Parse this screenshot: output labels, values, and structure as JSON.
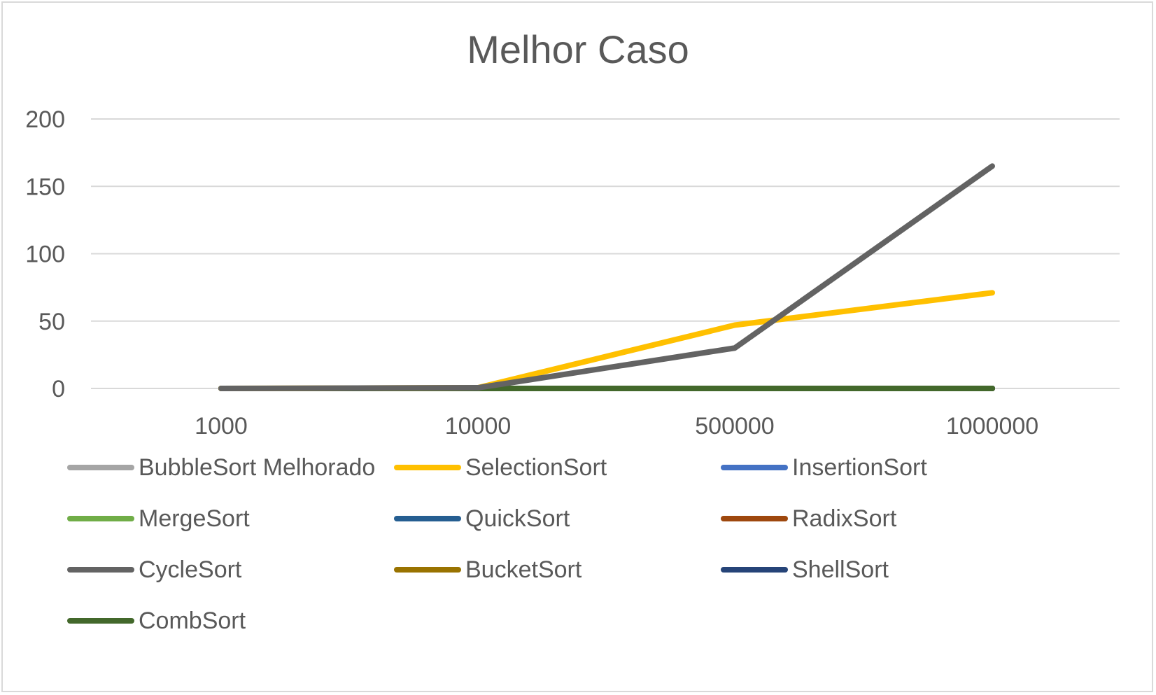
{
  "chart_data": {
    "type": "line",
    "title": "Melhor Caso",
    "xlabel": "",
    "ylabel": "",
    "categories": [
      "1000",
      "10000",
      "500000",
      "1000000"
    ],
    "ylim": [
      0,
      200
    ],
    "yticks": [
      0,
      50,
      100,
      150,
      200
    ],
    "grid": true,
    "legend_position": "bottom",
    "series": [
      {
        "name": "BubbleSort Melhorado",
        "color": "#a5a5a5",
        "values": [
          0,
          0,
          0,
          0
        ]
      },
      {
        "name": "SelectionSort",
        "color": "#ffc000",
        "values": [
          0,
          0.5,
          47,
          71
        ]
      },
      {
        "name": "InsertionSort",
        "color": "#4472c4",
        "values": [
          0,
          0,
          0,
          0
        ]
      },
      {
        "name": "MergeSort",
        "color": "#70ad47",
        "values": [
          0,
          0,
          0,
          0
        ]
      },
      {
        "name": "QuickSort",
        "color": "#255e91",
        "values": [
          0,
          0,
          0,
          0
        ]
      },
      {
        "name": "RadixSort",
        "color": "#9e480e",
        "values": [
          0,
          0,
          0,
          0
        ]
      },
      {
        "name": "CycleSort",
        "color": "#636363",
        "values": [
          0,
          0.5,
          30,
          165
        ]
      },
      {
        "name": "BucketSort",
        "color": "#997300",
        "values": [
          0,
          0,
          0,
          0
        ]
      },
      {
        "name": "ShellSort",
        "color": "#264478",
        "values": [
          0,
          0,
          0,
          0
        ]
      },
      {
        "name": "CombSort",
        "color": "#43682b",
        "values": [
          0,
          0,
          0,
          0
        ]
      }
    ]
  }
}
